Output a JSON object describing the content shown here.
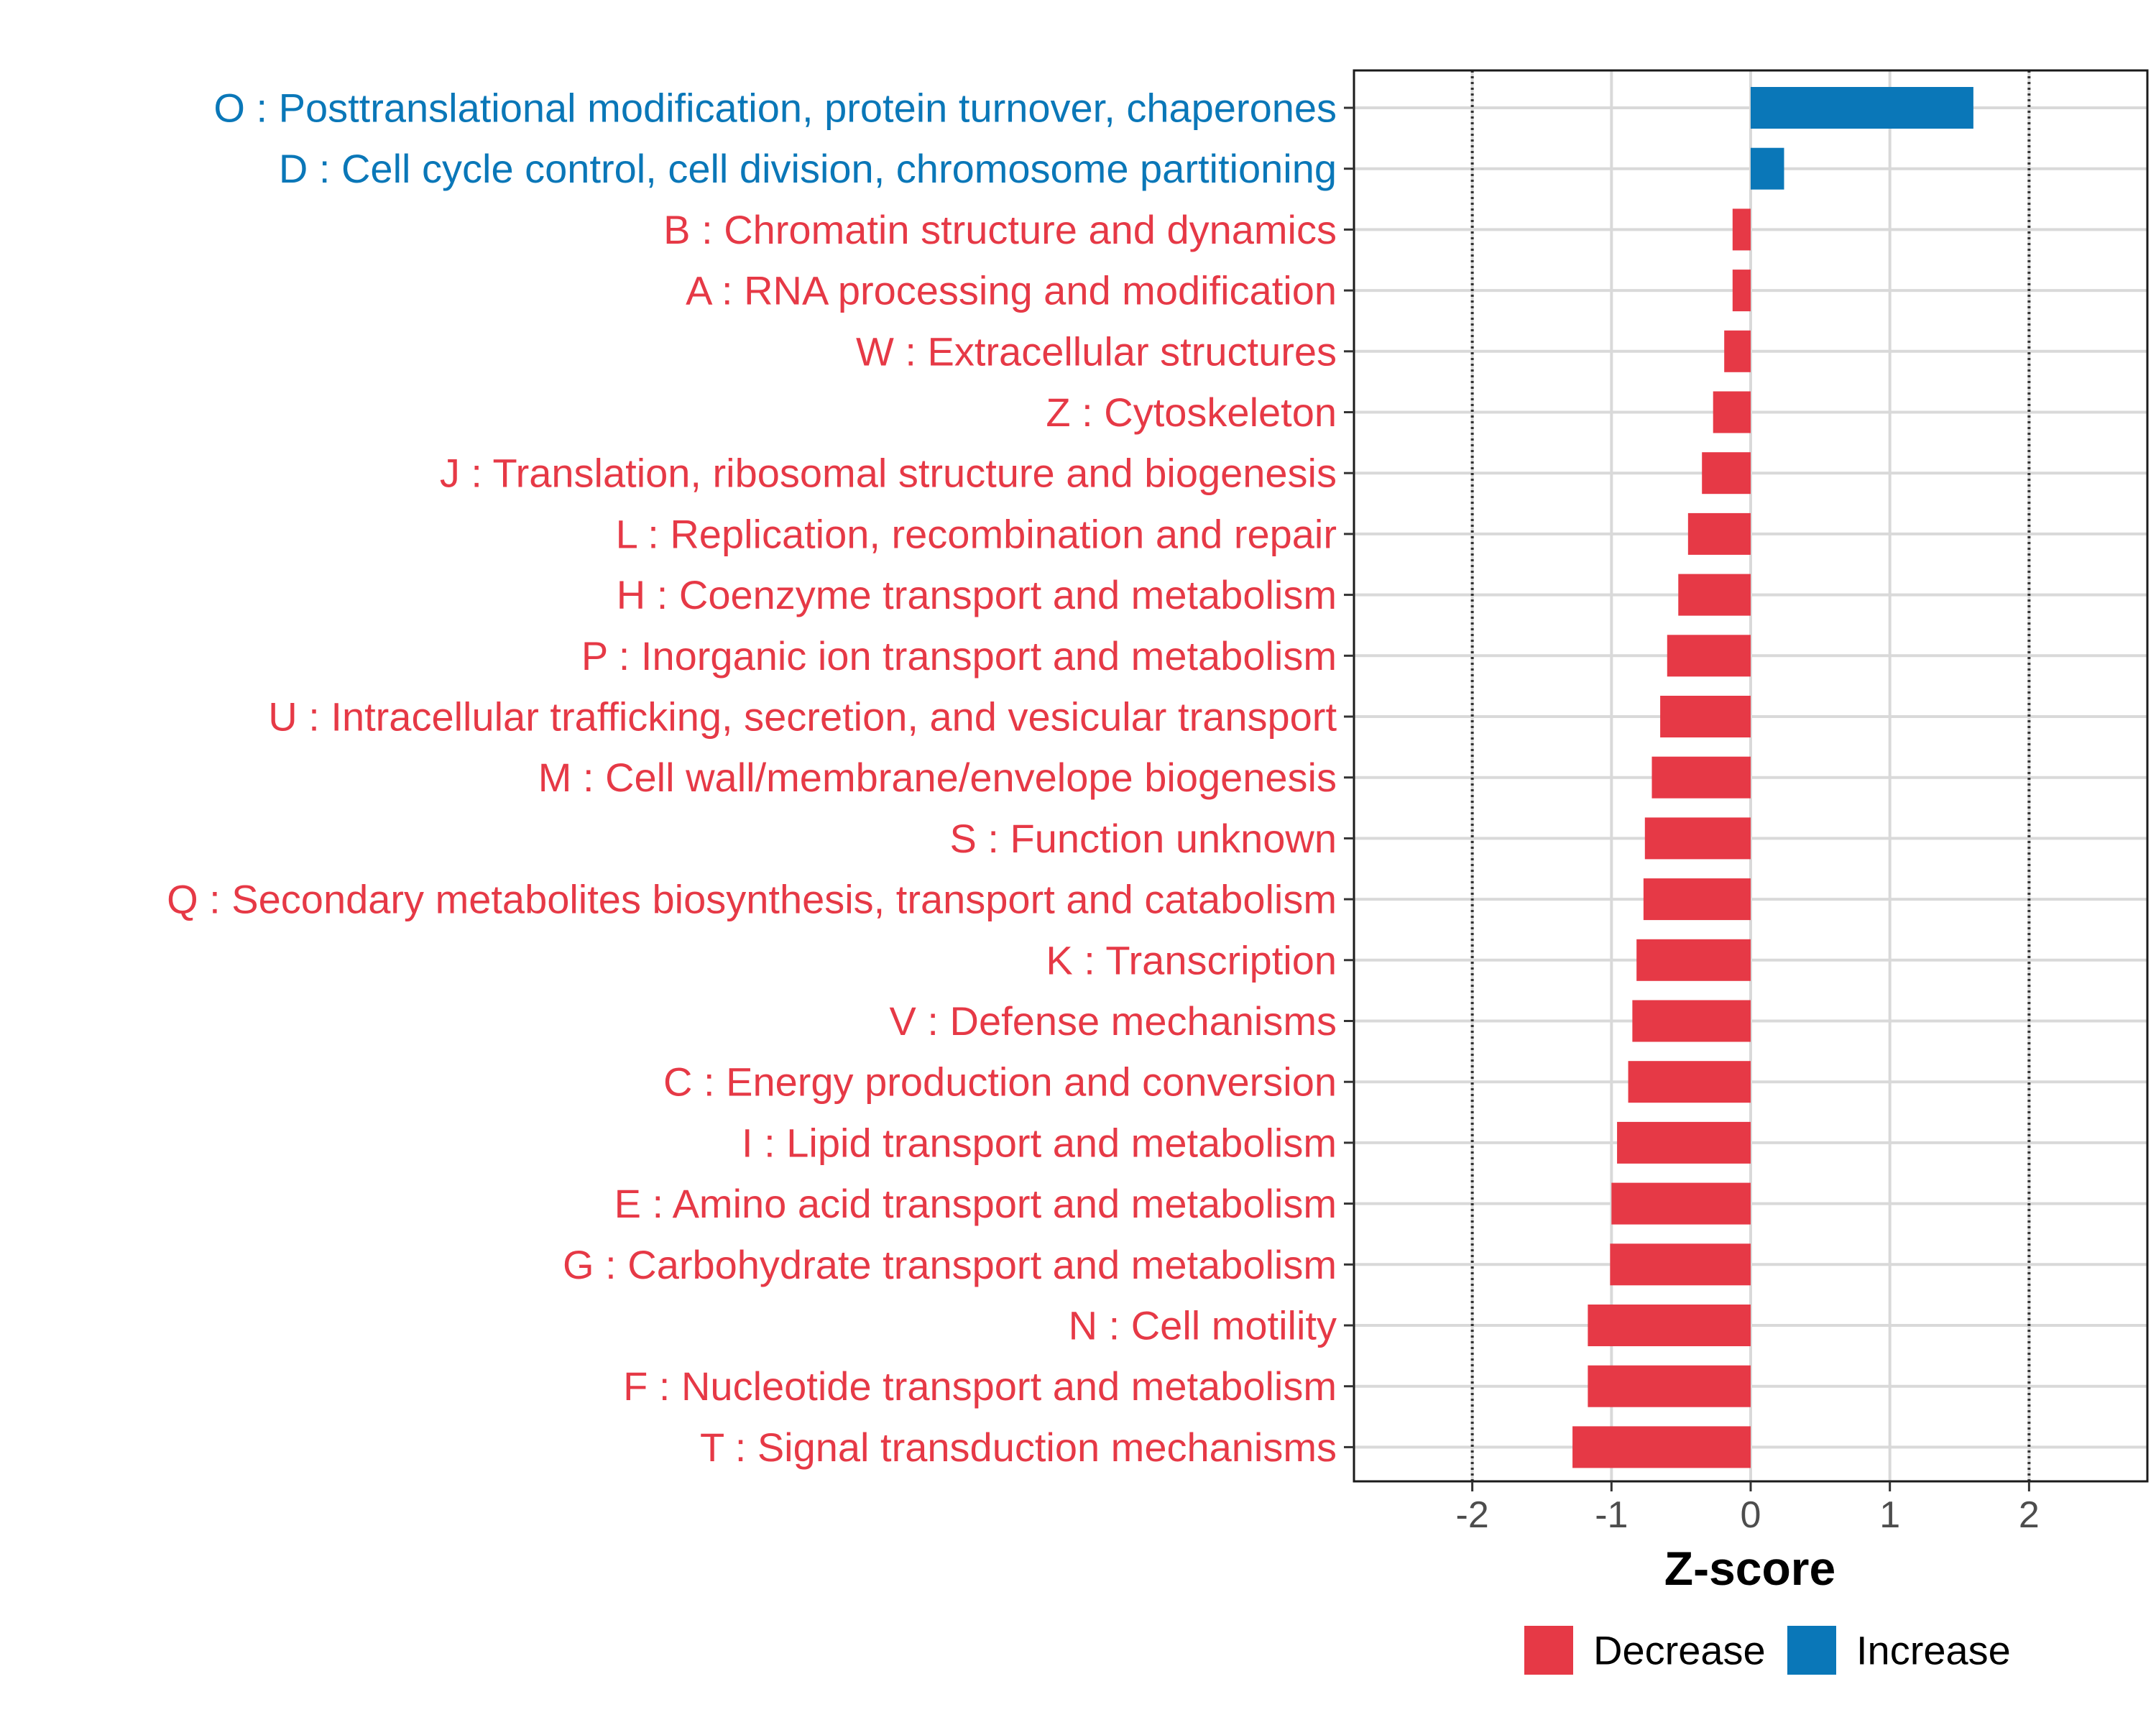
{
  "chart_data": {
    "type": "bar",
    "orientation": "horizontal",
    "xlabel": "Z-score",
    "ylabel": "",
    "xlim": [
      -2.85,
      2.85
    ],
    "xticks": [
      -2,
      -1,
      0,
      1,
      2
    ],
    "xtick_labels": [
      "-2",
      "-1",
      "0",
      "1",
      "2"
    ],
    "reference_lines": [
      -2,
      2
    ],
    "legend_position": "bottom",
    "colors": {
      "Decrease": "#e63946",
      "Increase": "#0a77b8"
    },
    "categories": [
      "O : Posttranslational modification, protein turnover, chaperones",
      "D : Cell cycle control, cell division, chromosome partitioning",
      "B : Chromatin structure and dynamics",
      "A : RNA processing and modification",
      "W : Extracellular structures",
      "Z : Cytoskeleton",
      "J : Translation, ribosomal structure and biogenesis",
      "L : Replication, recombination and repair",
      "H : Coenzyme transport and metabolism",
      "P : Inorganic ion transport and metabolism",
      "U : Intracellular trafficking, secretion, and vesicular transport",
      "M : Cell wall/membrane/envelope biogenesis",
      "S : Function unknown",
      "Q : Secondary metabolites biosynthesis, transport and catabolism",
      "K : Transcription",
      "V : Defense mechanisms",
      "C : Energy production and conversion",
      "I : Lipid transport and metabolism",
      "E : Amino acid transport and metabolism",
      "G : Carbohydrate transport and metabolism",
      "N : Cell motility",
      "F : Nucleotide transport and metabolism",
      "T : Signal transduction mechanisms"
    ],
    "values": [
      1.6,
      0.24,
      -0.13,
      -0.13,
      -0.19,
      -0.27,
      -0.35,
      -0.45,
      -0.52,
      -0.6,
      -0.65,
      -0.71,
      -0.76,
      -0.77,
      -0.82,
      -0.85,
      -0.88,
      -0.96,
      -1.0,
      -1.01,
      -1.17,
      -1.17,
      -1.28
    ],
    "groups": [
      "Increase",
      "Increase",
      "Decrease",
      "Decrease",
      "Decrease",
      "Decrease",
      "Decrease",
      "Decrease",
      "Decrease",
      "Decrease",
      "Decrease",
      "Decrease",
      "Decrease",
      "Decrease",
      "Decrease",
      "Decrease",
      "Decrease",
      "Decrease",
      "Decrease",
      "Decrease",
      "Decrease",
      "Decrease",
      "Decrease"
    ],
    "legend": [
      {
        "name": "Decrease"
      },
      {
        "name": "Increase"
      }
    ]
  }
}
